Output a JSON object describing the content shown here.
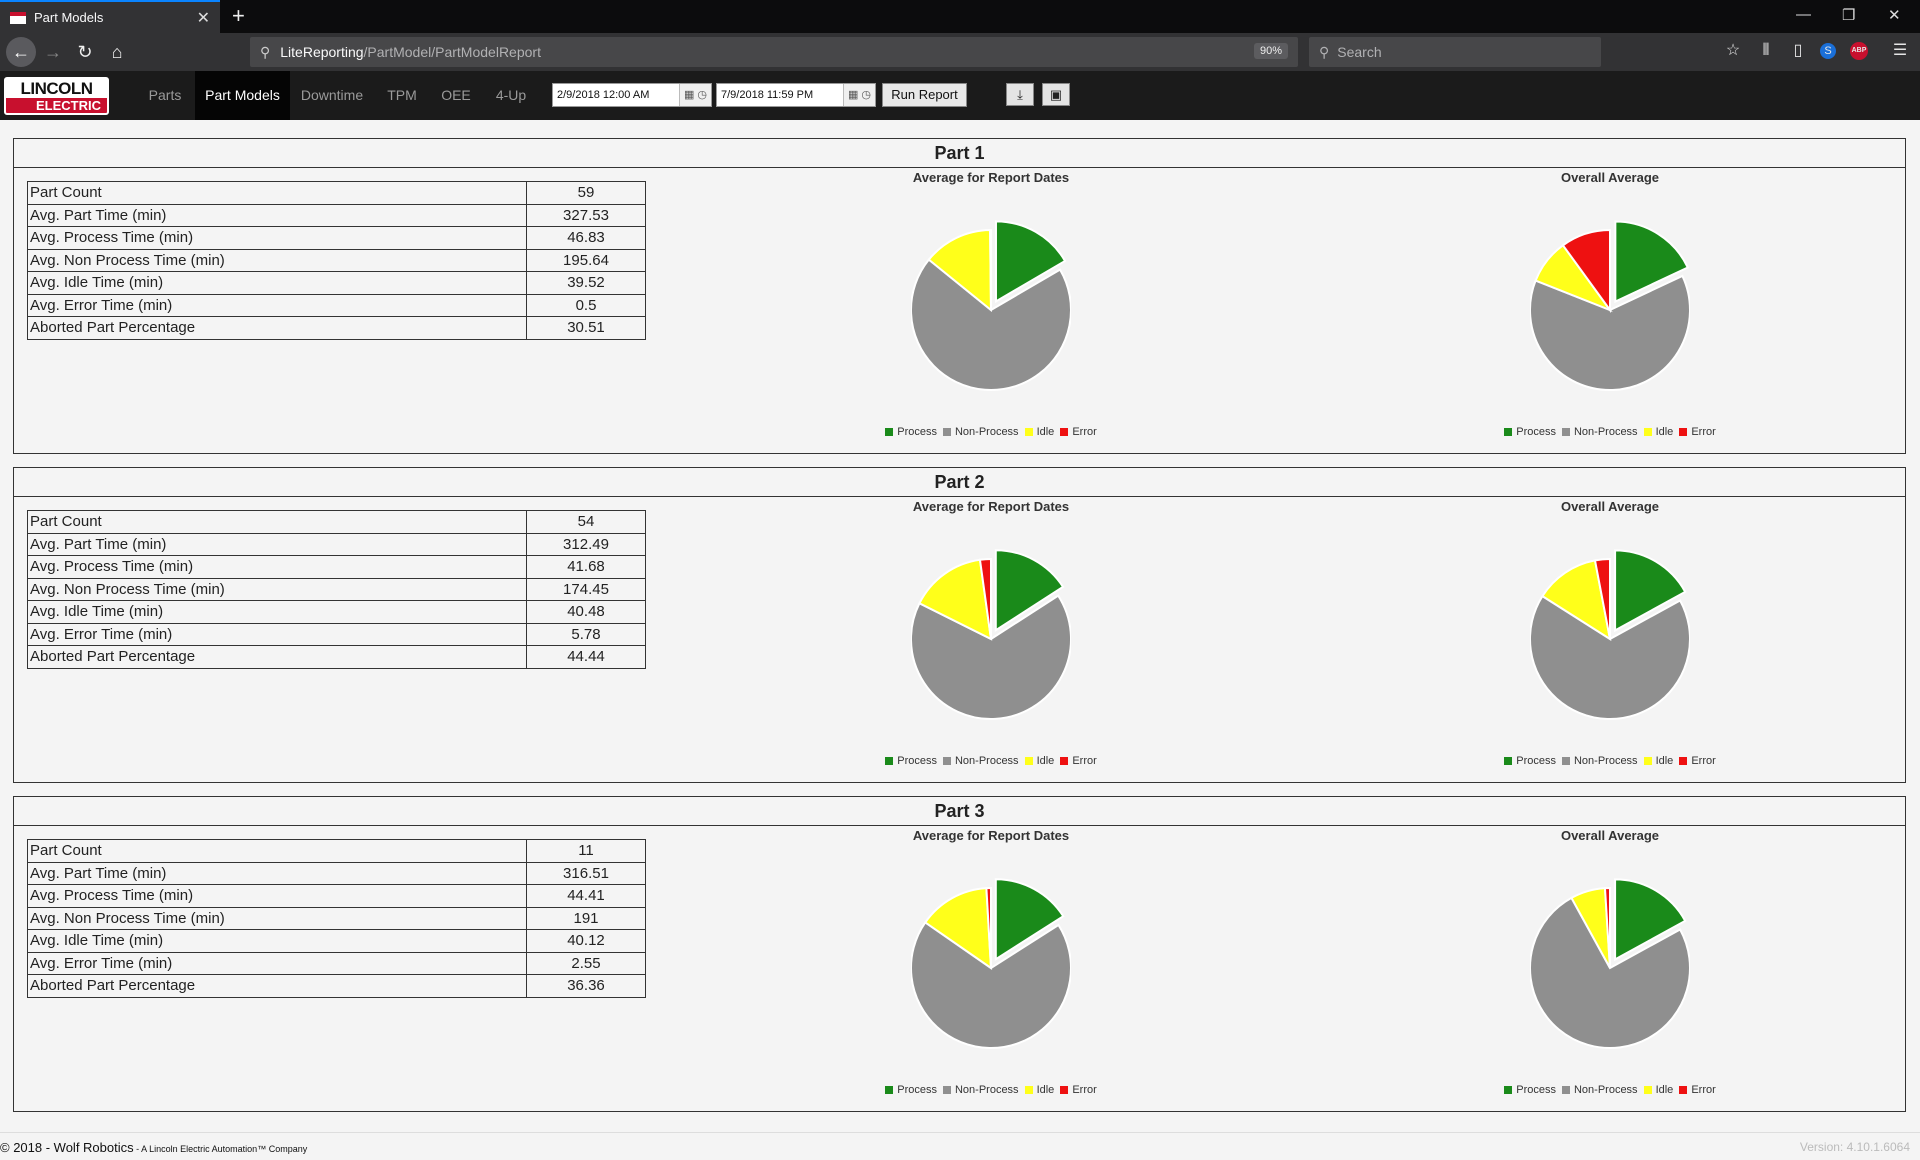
{
  "browser": {
    "tab_title": "Part Models",
    "new_tab": "+",
    "close": "✕",
    "url_host": "LiteReporting",
    "url_path": "/PartModel/PartModelReport",
    "zoom": "90%",
    "search_placeholder": "Search",
    "abp": "ABP"
  },
  "app": {
    "logo_top": "LINCOLN",
    "logo_bottom": "ELECTRIC",
    "tabs": [
      "Parts",
      "Part Models",
      "Downtime",
      "TPM",
      "OEE",
      "4-Up"
    ],
    "active_tab": "Part Models",
    "start_date": "2/9/2018 12:00 AM",
    "end_date": "7/9/2018 11:59 PM",
    "run_report": "Run Report"
  },
  "legend": [
    "Process",
    "Non-Process",
    "Idle",
    "Error"
  ],
  "colors": {
    "process": "#1a8a1a",
    "non_process": "#8f8f8f",
    "idle": "#ffff1a",
    "error": "#ee1111"
  },
  "parts": [
    {
      "title": "Part 1",
      "stats": [
        {
          "label": "Part Count",
          "value": "59"
        },
        {
          "label": "Avg. Part Time (min)",
          "value": "327.53"
        },
        {
          "label": "Avg. Process Time (min)",
          "value": "46.83"
        },
        {
          "label": "Avg. Non Process Time (min)",
          "value": "195.64"
        },
        {
          "label": "Avg. Idle Time (min)",
          "value": "39.52"
        },
        {
          "label": "Avg. Error Time (min)",
          "value": "0.5"
        },
        {
          "label": "Aborted Part Percentage",
          "value": "30.51"
        }
      ],
      "chart_left_title": "Average for Report Dates",
      "chart_right_title": "Overall Average"
    },
    {
      "title": "Part 2",
      "stats": [
        {
          "label": "Part Count",
          "value": "54"
        },
        {
          "label": "Avg. Part Time (min)",
          "value": "312.49"
        },
        {
          "label": "Avg. Process Time (min)",
          "value": "41.68"
        },
        {
          "label": "Avg. Non Process Time (min)",
          "value": "174.45"
        },
        {
          "label": "Avg. Idle Time (min)",
          "value": "40.48"
        },
        {
          "label": "Avg. Error Time (min)",
          "value": "5.78"
        },
        {
          "label": "Aborted Part Percentage",
          "value": "44.44"
        }
      ],
      "chart_left_title": "Average for Report Dates",
      "chart_right_title": "Overall Average"
    },
    {
      "title": "Part 3",
      "stats": [
        {
          "label": "Part Count",
          "value": "11"
        },
        {
          "label": "Avg. Part Time (min)",
          "value": "316.51"
        },
        {
          "label": "Avg. Process Time (min)",
          "value": "44.41"
        },
        {
          "label": "Avg. Non Process Time (min)",
          "value": "191"
        },
        {
          "label": "Avg. Idle Time (min)",
          "value": "40.12"
        },
        {
          "label": "Avg. Error Time (min)",
          "value": "2.55"
        },
        {
          "label": "Aborted Part Percentage",
          "value": "36.36"
        }
      ],
      "chart_left_title": "Average for Report Dates",
      "chart_right_title": "Overall Average"
    }
  ],
  "chart_data": [
    {
      "type": "pie",
      "title": "Average for Report Dates",
      "categories": [
        "Process",
        "Non-Process",
        "Idle",
        "Error"
      ],
      "values": [
        46.83,
        195.64,
        39.52,
        0.5
      ]
    },
    {
      "type": "pie",
      "title": "Overall Average",
      "categories": [
        "Process",
        "Non-Process",
        "Idle",
        "Error"
      ],
      "values": [
        18,
        63,
        9,
        10
      ]
    },
    {
      "type": "pie",
      "title": "Average for Report Dates",
      "categories": [
        "Process",
        "Non-Process",
        "Idle",
        "Error"
      ],
      "values": [
        41.68,
        174.45,
        40.48,
        5.78
      ]
    },
    {
      "type": "pie",
      "title": "Overall Average",
      "categories": [
        "Process",
        "Non-Process",
        "Idle",
        "Error"
      ],
      "values": [
        17,
        67,
        13,
        3
      ]
    },
    {
      "type": "pie",
      "title": "Average for Report Dates",
      "categories": [
        "Process",
        "Non-Process",
        "Idle",
        "Error"
      ],
      "values": [
        44.41,
        191,
        40.12,
        2.55
      ]
    },
    {
      "type": "pie",
      "title": "Overall Average",
      "categories": [
        "Process",
        "Non-Process",
        "Idle",
        "Error"
      ],
      "values": [
        17,
        75,
        7,
        1
      ]
    }
  ],
  "footer": {
    "copyright": "© 2018 - Wolf Robotics",
    "tagline": " - A Lincoln Electric Automation™ Company",
    "version": "Version: 4.10.1.6064"
  }
}
